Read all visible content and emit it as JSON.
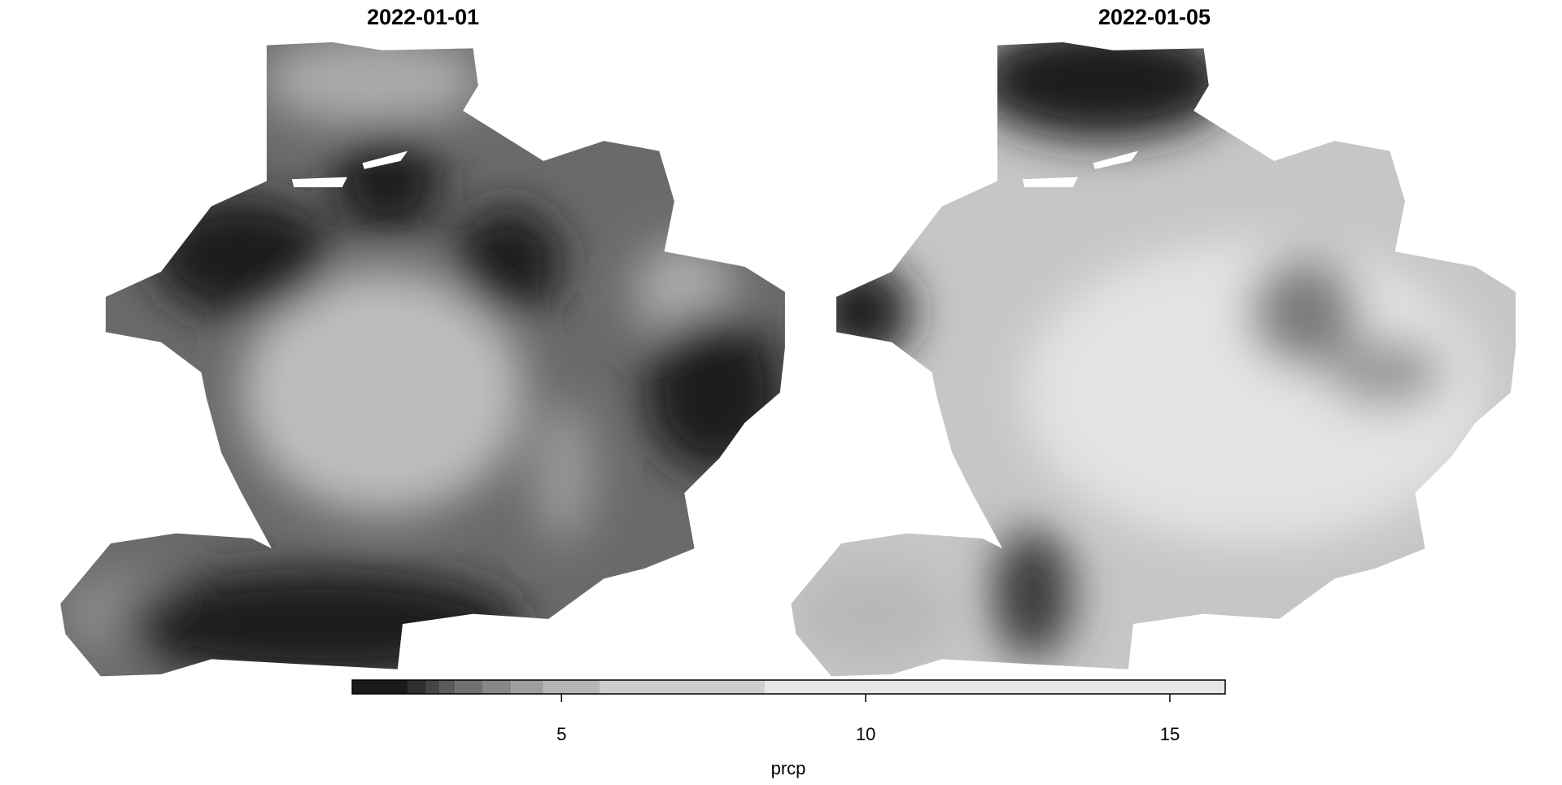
{
  "chart_data": {
    "type": "raster",
    "panels": [
      {
        "title": "2022-01-01"
      },
      {
        "title": "2022-01-05"
      }
    ],
    "legend": {
      "title": "prcp",
      "breaks": [
        1.56,
        2.47,
        2.77,
        3.0,
        3.25,
        3.71,
        4.17,
        4.7,
        5.63,
        8.34,
        15.91
      ],
      "colors": [
        "#1a1a1a",
        "#2e2e2e",
        "#444444",
        "#5a5a5a",
        "#707070",
        "#878787",
        "#9e9e9e",
        "#b6b6b6",
        "#cecece",
        "#e6e6e6"
      ],
      "xlim": [
        1.56,
        15.91
      ],
      "xticks": [
        5,
        10,
        15
      ]
    }
  }
}
